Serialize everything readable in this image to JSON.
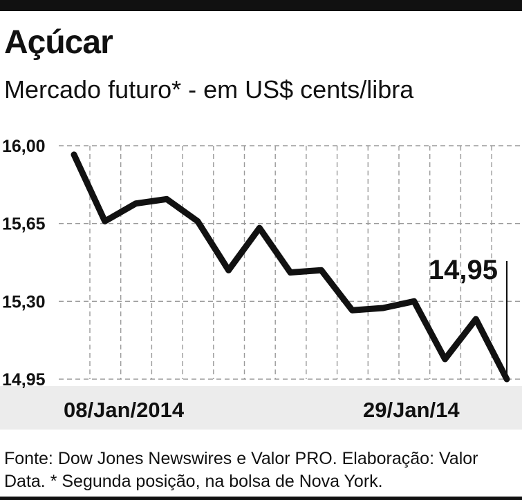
{
  "chart_data": {
    "type": "line",
    "title": "Açúcar",
    "subtitle": "Mercado futuro* - em US$ cents/libra",
    "x_start_label": "08/Jan/2014",
    "x_end_label": "29/Jan/14",
    "y_ticks": [
      "16,00",
      "15,65",
      "15,30",
      "14,95"
    ],
    "ylim": [
      14.95,
      16.0
    ],
    "grid": true,
    "last_value_label": "14,95",
    "values": [
      15.96,
      15.66,
      15.74,
      15.76,
      15.66,
      15.44,
      15.63,
      15.43,
      15.44,
      15.26,
      15.27,
      15.3,
      15.04,
      15.22,
      14.95
    ]
  },
  "footer": {
    "note": "Fonte: Dow Jones Newswires e Valor PRO. Elaboração: Valor Data.  * Segunda posição, na bolsa de Nova York."
  }
}
